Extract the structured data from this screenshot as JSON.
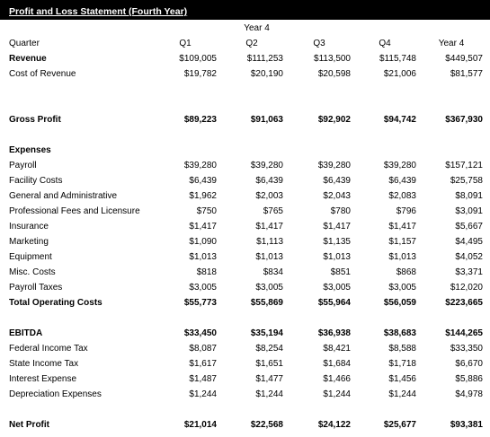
{
  "title": "Profit and Loss Statement (Fourth Year)",
  "year_header": "Year 4",
  "columns": [
    "Q1",
    "Q2",
    "Q3",
    "Q4",
    "Year 4"
  ],
  "quarter_label": "Quarter",
  "rows": [
    {
      "label": "Revenue",
      "bold_label": true,
      "bold_values": false,
      "values": [
        "$109,005",
        "$111,253",
        "$113,500",
        "$115,748",
        "$449,507"
      ]
    },
    {
      "label": "Cost of Revenue",
      "values": [
        "$19,782",
        "$20,190",
        "$20,598",
        "$21,006",
        "$81,577"
      ]
    },
    {
      "label": "Gross Profit",
      "bold_label": true,
      "bold_values": true,
      "values": [
        "$89,223",
        "$91,063",
        "$92,902",
        "$94,742",
        "$367,930"
      ]
    },
    {
      "label": "Expenses",
      "bold_label": true,
      "values": []
    },
    {
      "label": "Payroll",
      "values": [
        "$39,280",
        "$39,280",
        "$39,280",
        "$39,280",
        "$157,121"
      ]
    },
    {
      "label": "Facility Costs",
      "values": [
        "$6,439",
        "$6,439",
        "$6,439",
        "$6,439",
        "$25,758"
      ]
    },
    {
      "label": "General and Administrative",
      "values": [
        "$1,962",
        "$2,003",
        "$2,043",
        "$2,083",
        "$8,091"
      ]
    },
    {
      "label": "Professional Fees and Licensure",
      "values": [
        "$750",
        "$765",
        "$780",
        "$796",
        "$3,091"
      ]
    },
    {
      "label": "Insurance",
      "values": [
        "$1,417",
        "$1,417",
        "$1,417",
        "$1,417",
        "$5,667"
      ]
    },
    {
      "label": "Marketing",
      "values": [
        "$1,090",
        "$1,113",
        "$1,135",
        "$1,157",
        "$4,495"
      ]
    },
    {
      "label": "Equipment",
      "values": [
        "$1,013",
        "$1,013",
        "$1,013",
        "$1,013",
        "$4,052"
      ]
    },
    {
      "label": "Misc. Costs",
      "values": [
        "$818",
        "$834",
        "$851",
        "$868",
        "$3,371"
      ]
    },
    {
      "label": "Payroll Taxes",
      "values": [
        "$3,005",
        "$3,005",
        "$3,005",
        "$3,005",
        "$12,020"
      ]
    },
    {
      "label": "Total Operating Costs",
      "bold_label": true,
      "bold_values": true,
      "values": [
        "$55,773",
        "$55,869",
        "$55,964",
        "$56,059",
        "$223,665"
      ]
    },
    {
      "label": "EBITDA",
      "bold_label": true,
      "bold_values": true,
      "values": [
        "$33,450",
        "$35,194",
        "$36,938",
        "$38,683",
        "$144,265"
      ]
    },
    {
      "label": "Federal Income Tax",
      "values": [
        "$8,087",
        "$8,254",
        "$8,421",
        "$8,588",
        "$33,350"
      ]
    },
    {
      "label": "State Income Tax",
      "values": [
        "$1,617",
        "$1,651",
        "$1,684",
        "$1,718",
        "$6,670"
      ]
    },
    {
      "label": "Interest Expense",
      "values": [
        "$1,487",
        "$1,477",
        "$1,466",
        "$1,456",
        "$5,886"
      ]
    },
    {
      "label": "Depreciation Expenses",
      "values": [
        "$1,244",
        "$1,244",
        "$1,244",
        "$1,244",
        "$4,978"
      ]
    },
    {
      "label": "Net Profit",
      "bold_label": true,
      "bold_values": true,
      "values": [
        "$21,014",
        "$22,568",
        "$24,122",
        "$25,677",
        "$93,381"
      ]
    }
  ]
}
